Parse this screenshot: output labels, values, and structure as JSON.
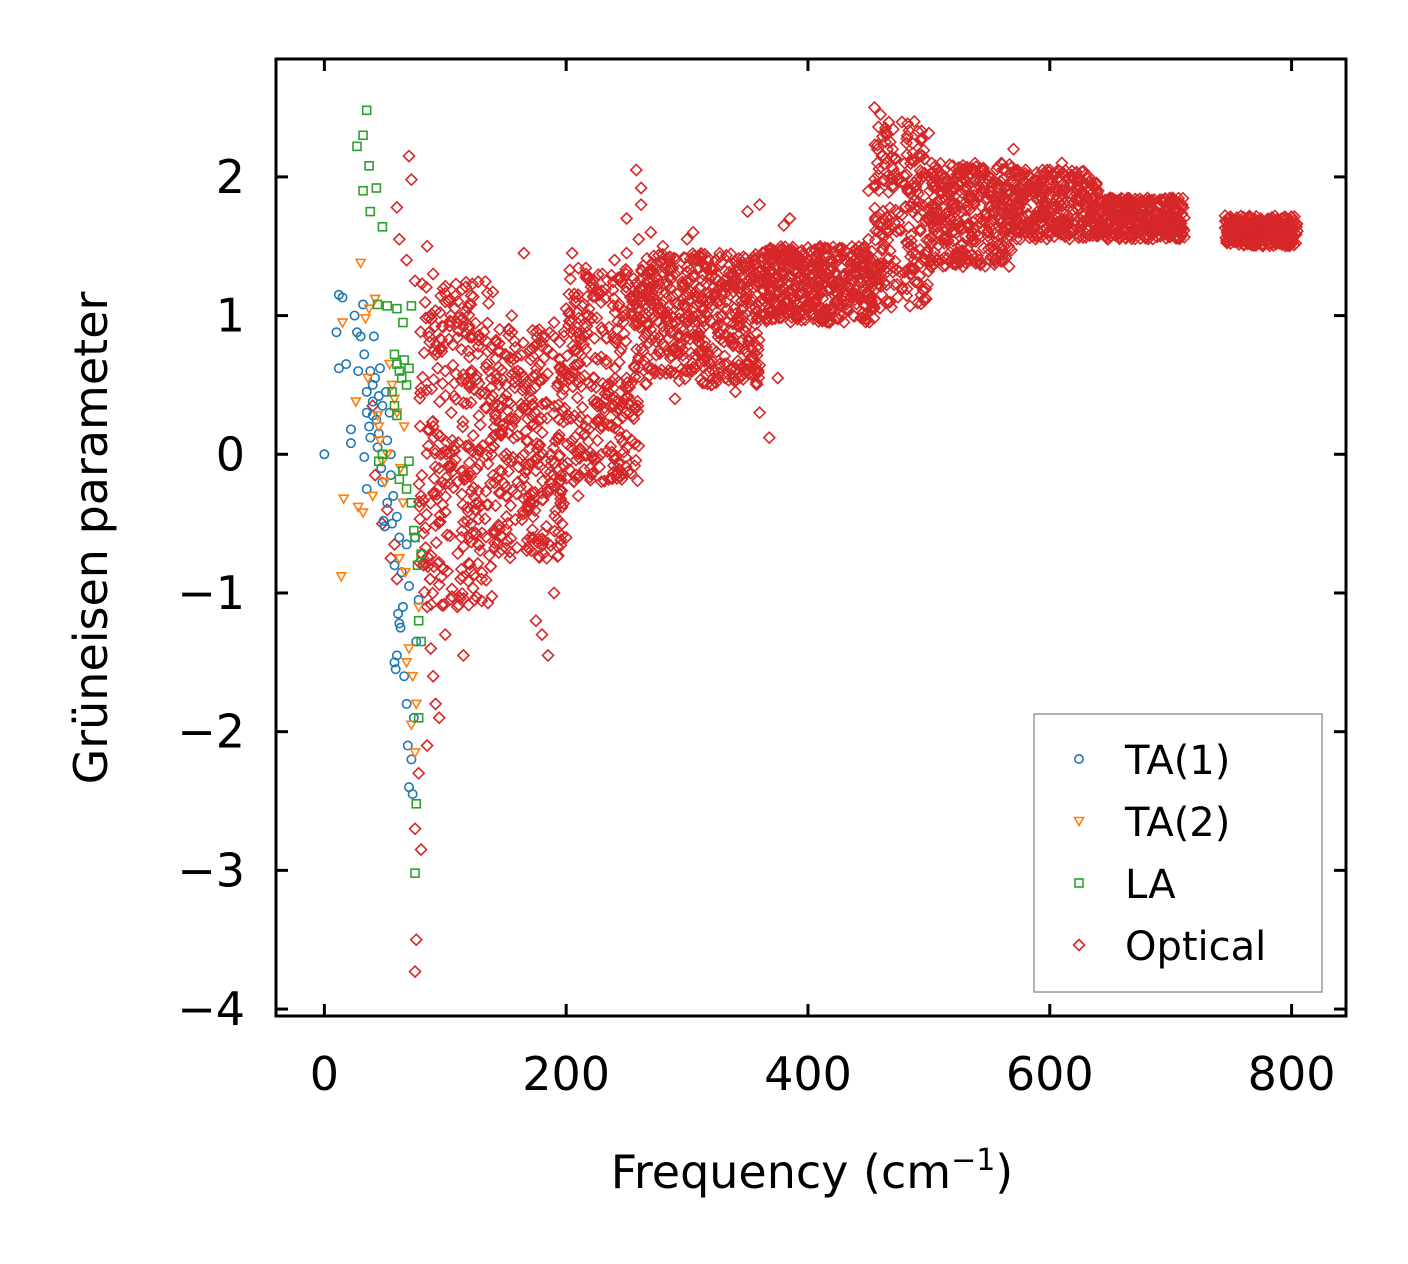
{
  "chart_data": {
    "type": "scatter",
    "title": "",
    "xlabel": "Frequency (cm",
    "xlabel_sup": "−1",
    "xlabel_close": ")",
    "ylabel": "Grüneisen parameter",
    "xlim": [
      -40,
      845
    ],
    "ylim": [
      -4.05,
      2.85
    ],
    "x_ticks": [
      0,
      200,
      400,
      600,
      800
    ],
    "x_tick_labels": [
      "0",
      "200",
      "400",
      "600",
      "800"
    ],
    "y_ticks": [
      -4,
      -3,
      -2,
      -1,
      0,
      1,
      2
    ],
    "y_tick_labels": [
      "−4",
      "−3",
      "−2",
      "−1",
      "0",
      "1",
      "2"
    ],
    "grid": false,
    "legend_position": "bottom-right",
    "series": [
      {
        "name": "TA(1)",
        "marker": "circle",
        "color": "#1f77b4",
        "points": [
          [
            0,
            0
          ],
          [
            12,
            1.15
          ],
          [
            15,
            1.13
          ],
          [
            10,
            0.88
          ],
          [
            12,
            0.62
          ],
          [
            18,
            0.65
          ],
          [
            22,
            0.18
          ],
          [
            22,
            0.08
          ],
          [
            25,
            1.0
          ],
          [
            27,
            0.88
          ],
          [
            28,
            0.6
          ],
          [
            30,
            0.85
          ],
          [
            32,
            1.08
          ],
          [
            33,
            0.72
          ],
          [
            33,
            -0.02
          ],
          [
            35,
            0.45
          ],
          [
            35,
            0.3
          ],
          [
            35,
            -0.25
          ],
          [
            37,
            0.2
          ],
          [
            38,
            0.12
          ],
          [
            38,
            0.6
          ],
          [
            40,
            0.5
          ],
          [
            40,
            0.38
          ],
          [
            40,
            0.28
          ],
          [
            41,
            0.85
          ],
          [
            42,
            0.55
          ],
          [
            43,
            0.25
          ],
          [
            44,
            0.05
          ],
          [
            45,
            0.42
          ],
          [
            45,
            0.15
          ],
          [
            46,
            0.62
          ],
          [
            47,
            -0.1
          ],
          [
            48,
            0.35
          ],
          [
            48,
            -0.2
          ],
          [
            49,
            -0.48
          ],
          [
            50,
            -0.52
          ],
          [
            51,
            0.45
          ],
          [
            52,
            0.1
          ],
          [
            52,
            -0.35
          ],
          [
            54,
            0.3
          ],
          [
            55,
            0.0
          ],
          [
            55,
            -0.15
          ],
          [
            56,
            -0.5
          ],
          [
            57,
            -0.3
          ],
          [
            58,
            -0.8
          ],
          [
            58,
            -1.5
          ],
          [
            59,
            -1.55
          ],
          [
            60,
            -1.45
          ],
          [
            60,
            -0.45
          ],
          [
            61,
            -1.15
          ],
          [
            62,
            -1.22
          ],
          [
            62,
            -0.6
          ],
          [
            63,
            -1.25
          ],
          [
            64,
            -0.85
          ],
          [
            65,
            -1.1
          ],
          [
            66,
            -1.6
          ],
          [
            68,
            -0.65
          ],
          [
            68,
            -1.8
          ],
          [
            69,
            -2.1
          ],
          [
            70,
            -2.4
          ],
          [
            70,
            -0.95
          ],
          [
            72,
            -2.2
          ],
          [
            73,
            -2.45
          ],
          [
            74,
            -1.9
          ],
          [
            75,
            -0.6
          ],
          [
            76,
            -1.35
          ],
          [
            78,
            -1.05
          ]
        ]
      },
      {
        "name": "TA(2)",
        "marker": "triangle-down",
        "color": "#ff7f0e",
        "points": [
          [
            14,
            -0.88
          ],
          [
            16,
            -0.32
          ],
          [
            15,
            0.95
          ],
          [
            26,
            0.38
          ],
          [
            28,
            -0.38
          ],
          [
            30,
            1.38
          ],
          [
            32,
            -0.42
          ],
          [
            34,
            0.98
          ],
          [
            36,
            0.55
          ],
          [
            37,
            1.05
          ],
          [
            40,
            -0.3
          ],
          [
            42,
            1.12
          ],
          [
            44,
            0.28
          ],
          [
            45,
            0.2
          ],
          [
            46,
            0.1
          ],
          [
            48,
            -0.05
          ],
          [
            50,
            -0.2
          ],
          [
            52,
            0.0
          ],
          [
            54,
            0.65
          ],
          [
            56,
            0.5
          ],
          [
            58,
            0.4
          ],
          [
            60,
            0.3
          ],
          [
            62,
            -0.75
          ],
          [
            63,
            -0.1
          ],
          [
            65,
            -0.35
          ],
          [
            66,
            0.2
          ],
          [
            67,
            -0.85
          ],
          [
            68,
            -1.5
          ],
          [
            70,
            -1.4
          ],
          [
            72,
            -1.95
          ],
          [
            73,
            -1.6
          ],
          [
            75,
            -2.15
          ],
          [
            76,
            -1.8
          ],
          [
            78,
            -1.1
          ]
        ]
      },
      {
        "name": "LA",
        "marker": "square",
        "color": "#2ca02c",
        "points": [
          [
            35,
            2.48
          ],
          [
            32,
            2.3
          ],
          [
            27,
            2.22
          ],
          [
            37,
            2.08
          ],
          [
            32,
            1.9
          ],
          [
            43,
            1.92
          ],
          [
            38,
            1.75
          ],
          [
            48,
            1.64
          ],
          [
            44,
            1.08
          ],
          [
            52,
            1.07
          ],
          [
            60,
            1.05
          ],
          [
            65,
            0.95
          ],
          [
            72,
            1.07
          ],
          [
            58,
            0.72
          ],
          [
            60,
            0.65
          ],
          [
            62,
            0.6
          ],
          [
            64,
            0.55
          ],
          [
            66,
            0.68
          ],
          [
            68,
            0.5
          ],
          [
            70,
            0.62
          ],
          [
            56,
            0.45
          ],
          [
            58,
            0.35
          ],
          [
            60,
            0.28
          ],
          [
            45,
            -0.05
          ],
          [
            48,
            0.0
          ],
          [
            62,
            -0.18
          ],
          [
            65,
            -0.12
          ],
          [
            68,
            -0.25
          ],
          [
            70,
            -0.05
          ],
          [
            72,
            -0.35
          ],
          [
            74,
            -0.55
          ],
          [
            75,
            -0.6
          ],
          [
            77,
            -0.8
          ],
          [
            78,
            -1.2
          ],
          [
            80,
            -0.72
          ],
          [
            80,
            -1.35
          ],
          [
            78,
            -1.9
          ],
          [
            76,
            -2.52
          ],
          [
            75,
            -3.02
          ]
        ]
      },
      {
        "name": "Optical",
        "marker": "diamond",
        "color": "#d62728",
        "points": [
          [
            70,
            2.15
          ],
          [
            72,
            1.98
          ],
          [
            60,
            1.78
          ],
          [
            62,
            1.55
          ],
          [
            68,
            1.4
          ],
          [
            75,
            1.25
          ],
          [
            85,
            1.5
          ],
          [
            90,
            1.3
          ],
          [
            100,
            1.1
          ],
          [
            110,
            0.95
          ],
          [
            120,
            0.7
          ],
          [
            130,
            0.45
          ],
          [
            140,
            0.35
          ],
          [
            150,
            0.5
          ],
          [
            160,
            0.6
          ],
          [
            170,
            0.75
          ],
          [
            180,
            0.85
          ],
          [
            190,
            0.95
          ],
          [
            200,
            1.05
          ],
          [
            210,
            1.15
          ],
          [
            220,
            1.25
          ],
          [
            230,
            1.3
          ],
          [
            240,
            1.4
          ],
          [
            250,
            1.45
          ],
          [
            260,
            1.55
          ],
          [
            270,
            1.6
          ],
          [
            280,
            1.5
          ],
          [
            290,
            1.3
          ],
          [
            300,
            1.25
          ],
          [
            310,
            1.2
          ],
          [
            320,
            1.15
          ],
          [
            330,
            1.18
          ],
          [
            340,
            1.25
          ],
          [
            350,
            1.2
          ],
          [
            360,
            1.1
          ],
          [
            370,
            1.25
          ],
          [
            380,
            1.3
          ],
          [
            390,
            1.3
          ],
          [
            400,
            1.2
          ],
          [
            410,
            1.25
          ],
          [
            420,
            1.4
          ],
          [
            430,
            1.3
          ],
          [
            440,
            1.35
          ],
          [
            450,
            1.55
          ],
          [
            455,
            2.5
          ],
          [
            460,
            2.45
          ],
          [
            465,
            2.3
          ],
          [
            470,
            2.2
          ],
          [
            480,
            2.1
          ],
          [
            490,
            1.9
          ],
          [
            500,
            1.7
          ],
          [
            510,
            1.7
          ],
          [
            520,
            1.8
          ],
          [
            530,
            1.9
          ],
          [
            540,
            1.95
          ],
          [
            550,
            2.0
          ],
          [
            560,
            2.1
          ],
          [
            570,
            2.2
          ],
          [
            580,
            2.05
          ],
          [
            590,
            2.0
          ],
          [
            600,
            2.05
          ],
          [
            610,
            2.1
          ],
          [
            620,
            2.0
          ],
          [
            630,
            1.95
          ],
          [
            640,
            1.9
          ],
          [
            650,
            1.85
          ],
          [
            660,
            1.8
          ],
          [
            670,
            1.75
          ],
          [
            680,
            1.7
          ],
          [
            690,
            1.72
          ],
          [
            700,
            1.68
          ],
          [
            710,
            1.63
          ],
          [
            745,
            1.72
          ],
          [
            755,
            1.68
          ],
          [
            765,
            1.65
          ],
          [
            775,
            1.6
          ],
          [
            785,
            1.57
          ],
          [
            795,
            1.55
          ],
          [
            800,
            1.52
          ],
          [
            258,
            2.05
          ],
          [
            262,
            1.92
          ],
          [
            205,
            1.45
          ],
          [
            165,
            1.45
          ],
          [
            155,
            1.0
          ],
          [
            145,
            0.9
          ],
          [
            110,
            -0.2
          ],
          [
            120,
            -0.6
          ],
          [
            130,
            -0.9
          ],
          [
            140,
            -0.55
          ],
          [
            150,
            -0.3
          ],
          [
            160,
            -0.2
          ],
          [
            170,
            -0.6
          ],
          [
            175,
            -1.2
          ],
          [
            180,
            -1.3
          ],
          [
            185,
            -1.45
          ],
          [
            190,
            -1.0
          ],
          [
            200,
            -0.6
          ],
          [
            210,
            -0.3
          ],
          [
            220,
            -0.1
          ],
          [
            230,
            0.2
          ],
          [
            240,
            0.35
          ],
          [
            250,
            0.55
          ],
          [
            260,
            0.7
          ],
          [
            270,
            0.9
          ],
          [
            280,
            0.8
          ],
          [
            290,
            0.4
          ],
          [
            300,
            0.6
          ],
          [
            320,
            0.5
          ],
          [
            340,
            0.45
          ],
          [
            360,
            0.3
          ],
          [
            368,
            0.12
          ],
          [
            375,
            0.55
          ],
          [
            300,
            1.55
          ],
          [
            305,
            1.6
          ],
          [
            350,
            1.75
          ],
          [
            360,
            1.8
          ],
          [
            380,
            1.65
          ],
          [
            385,
            1.7
          ],
          [
            250,
            1.7
          ],
          [
            262,
            1.8
          ],
          [
            520,
            1.9
          ],
          [
            530,
            2.05
          ],
          [
            450,
            1.9
          ],
          [
            470,
            1.35
          ],
          [
            80,
            -0.3
          ],
          [
            82,
            -0.8
          ],
          [
            85,
            -1.1
          ],
          [
            88,
            -1.4
          ],
          [
            90,
            -1.6
          ],
          [
            95,
            -1.9
          ],
          [
            78,
            -2.3
          ],
          [
            75,
            -2.7
          ],
          [
            80,
            -2.85
          ],
          [
            76,
            -3.5
          ],
          [
            75,
            -3.73
          ],
          [
            85,
            -2.1
          ],
          [
            92,
            -1.8
          ],
          [
            100,
            -1.3
          ],
          [
            110,
            -1.1
          ],
          [
            115,
            -1.45
          ],
          [
            100,
            0.6
          ],
          [
            105,
            0.3
          ],
          [
            90,
            0.2
          ],
          [
            95,
            -0.1
          ],
          [
            60,
            -0.9
          ],
          [
            55,
            -0.75
          ],
          [
            58,
            -0.65
          ],
          [
            52,
            -0.4
          ],
          [
            48,
            -0.5
          ],
          [
            42,
            -0.15
          ],
          [
            40,
            0.35
          ]
        ],
        "bands": [
          {
            "x_from": 78,
            "x_to": 140,
            "lower": -1.1,
            "upper": 1.25
          },
          {
            "x_from": 140,
            "x_to": 200,
            "lower": -0.75,
            "upper": 0.95
          },
          {
            "x_from": 200,
            "x_to": 260,
            "lower": -0.2,
            "upper": 1.35
          },
          {
            "x_from": 260,
            "x_to": 360,
            "lower": 0.5,
            "upper": 1.45
          },
          {
            "x_from": 360,
            "x_to": 455,
            "lower": 0.95,
            "upper": 1.5
          },
          {
            "x_from": 455,
            "x_to": 500,
            "lower": 1.05,
            "upper": 2.4
          },
          {
            "x_from": 500,
            "x_to": 570,
            "lower": 1.35,
            "upper": 2.1
          },
          {
            "x_from": 570,
            "x_to": 640,
            "lower": 1.55,
            "upper": 2.05
          },
          {
            "x_from": 640,
            "x_to": 712,
            "lower": 1.55,
            "upper": 1.85
          },
          {
            "x_from": 745,
            "x_to": 805,
            "lower": 1.5,
            "upper": 1.72
          }
        ]
      }
    ]
  }
}
